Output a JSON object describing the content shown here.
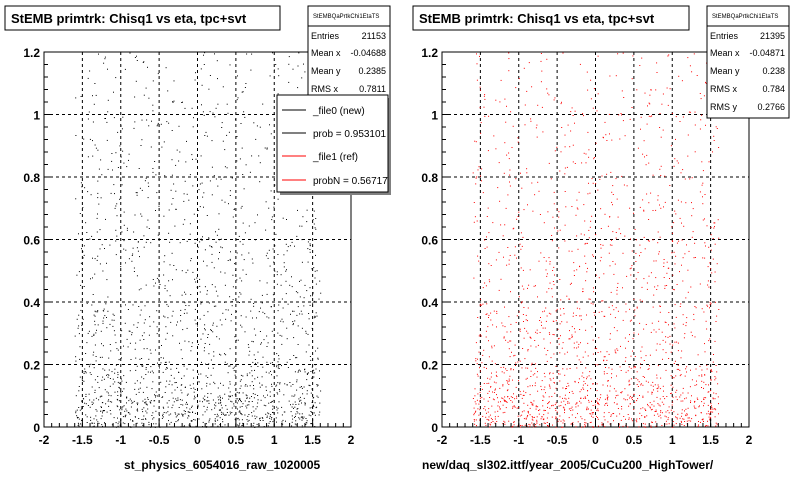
{
  "chart_data": [
    {
      "type": "scatter",
      "title": "StEMB primtrk: Chisq1 vs eta, tpc+svt",
      "xlabel": "st_physics_6054016_raw_1020005",
      "ylabel": "",
      "xlim": [
        -2,
        2
      ],
      "ylim": [
        0,
        1.2
      ],
      "x_ticks": [
        "-2",
        "-1.5",
        "-1",
        "-0.5",
        "0",
        "0.5",
        "1",
        "1.5",
        "2"
      ],
      "y_ticks": [
        "0",
        "0.2",
        "0.4",
        "0.6",
        "0.8",
        "1",
        "1.2"
      ],
      "grid": true,
      "marker_color": "#000000",
      "density_profile": {
        "x_range_populated": [
          -1.6,
          1.6
        ],
        "y_bins": [
          0.05,
          0.15,
          0.3,
          0.5,
          0.7,
          0.9,
          1.1
        ],
        "relative_density": [
          1.0,
          0.55,
          0.3,
          0.2,
          0.15,
          0.12,
          0.1
        ]
      },
      "stats": {
        "header": "StEMBQaPrtkChi1EtaTS",
        "rows": [
          {
            "label": "Entries",
            "value": "21153"
          },
          {
            "label": "Mean x",
            "value": "-0.04688"
          },
          {
            "label": "Mean y",
            "value": "0.2385"
          },
          {
            "label": "RMS x",
            "value": "0.7811"
          }
        ]
      },
      "legend": {
        "placement": "top-right",
        "entries": [
          {
            "label": "_file0 (new)",
            "color": "#000000"
          },
          {
            "label": "prob = 0.953101",
            "color": "#000000"
          },
          {
            "label": "_file1 (ref)",
            "color": "#ff0000"
          },
          {
            "label": "probN = 0.56717",
            "color": "#ff0000"
          }
        ]
      }
    },
    {
      "type": "scatter",
      "title": "StEMB primtrk: Chisq1 vs eta, tpc+svt",
      "xlabel": "new/daq_sl302.ittf/year_2005/CuCu200_HighTower/",
      "ylabel": "",
      "xlim": [
        -2,
        2
      ],
      "ylim": [
        0,
        1.2
      ],
      "x_ticks": [
        "-2",
        "-1.5",
        "-1",
        "-0.5",
        "0",
        "0.5",
        "1",
        "1.5",
        "2"
      ],
      "y_ticks": [
        "0",
        "0.2",
        "0.4",
        "0.6",
        "0.8",
        "1",
        "1.2"
      ],
      "grid": true,
      "marker_color": "#ff0000",
      "density_profile": {
        "x_range_populated": [
          -1.6,
          1.6
        ],
        "y_bins": [
          0.05,
          0.15,
          0.3,
          0.5,
          0.7,
          0.9,
          1.1
        ],
        "relative_density": [
          1.0,
          0.55,
          0.3,
          0.2,
          0.15,
          0.12,
          0.1
        ]
      },
      "stats": {
        "header": "StEMBQaPrtkChi1EtaTS",
        "rows": [
          {
            "label": "Entries",
            "value": "21395"
          },
          {
            "label": "Mean x",
            "value": "-0.04871"
          },
          {
            "label": "Mean y",
            "value": "0.238"
          },
          {
            "label": "RMS x",
            "value": "0.784"
          },
          {
            "label": "RMS y",
            "value": "0.2766"
          }
        ]
      }
    }
  ]
}
